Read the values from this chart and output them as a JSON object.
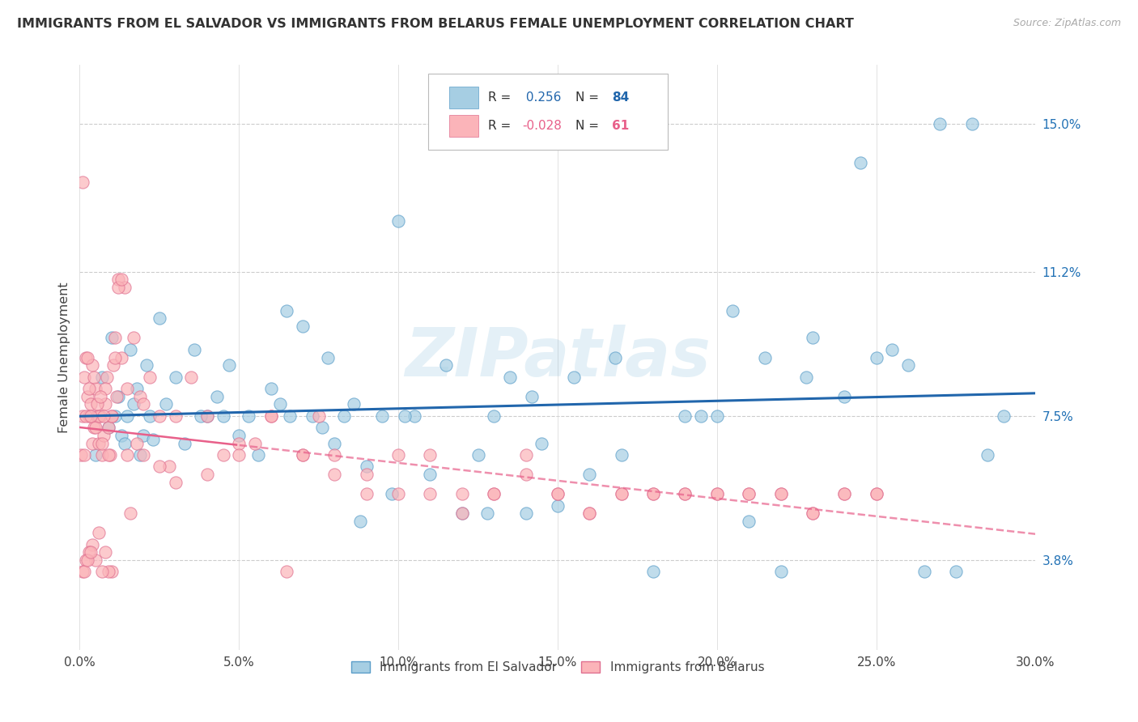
{
  "title": "IMMIGRANTS FROM EL SALVADOR VS IMMIGRANTS FROM BELARUS FEMALE UNEMPLOYMENT CORRELATION CHART",
  "source": "Source: ZipAtlas.com",
  "ylabel": "Female Unemployment",
  "xlim": [
    0.0,
    30.0
  ],
  "ylim": [
    1.5,
    16.5
  ],
  "xticks": [
    0.0,
    5.0,
    10.0,
    15.0,
    20.0,
    25.0,
    30.0
  ],
  "xtick_labels": [
    "0.0%",
    "5.0%",
    "10.0%",
    "15.0%",
    "20.0%",
    "25.0%",
    "30.0%"
  ],
  "yticks": [
    3.8,
    7.5,
    11.2,
    15.0
  ],
  "ytick_labels": [
    "3.8%",
    "7.5%",
    "11.2%",
    "15.0%"
  ],
  "r_el_salvador": "0.256",
  "n_el_salvador": "84",
  "r_belarus": "-0.028",
  "n_belarus": "61",
  "color_el_salvador": "#a6cee3",
  "color_el_salvador_edge": "#5b9ec9",
  "color_el_salvador_trend": "#2166ac",
  "color_belarus": "#fbb4b9",
  "color_belarus_edge": "#e07090",
  "color_belarus_trend": "#e8608a",
  "watermark_text": "ZIPatlas",
  "legend_bottom_labels": [
    "Immigrants from El Salvador",
    "Immigrants from Belarus"
  ],
  "el_salvador_x": [
    0.5,
    0.7,
    0.9,
    1.0,
    1.1,
    1.2,
    1.3,
    1.4,
    1.5,
    1.6,
    1.7,
    1.8,
    1.9,
    2.0,
    2.1,
    2.2,
    2.3,
    2.5,
    2.7,
    3.0,
    3.3,
    3.6,
    4.0,
    4.3,
    4.7,
    5.0,
    5.3,
    5.6,
    6.0,
    6.3,
    6.6,
    7.0,
    7.3,
    7.6,
    8.0,
    8.3,
    8.6,
    9.0,
    9.5,
    10.0,
    10.5,
    11.0,
    11.5,
    12.0,
    12.5,
    13.0,
    13.5,
    14.0,
    14.5,
    15.0,
    15.5,
    16.0,
    17.0,
    18.0,
    19.0,
    20.0,
    20.5,
    21.0,
    22.0,
    23.0,
    24.0,
    24.5,
    25.0,
    26.0,
    27.0,
    28.0,
    29.0,
    6.5,
    7.8,
    3.8,
    9.8,
    4.5,
    8.8,
    10.2,
    14.2,
    21.5,
    22.8,
    25.5,
    26.5,
    27.5,
    28.5,
    12.8,
    16.8,
    19.5
  ],
  "el_salvador_y": [
    6.5,
    8.5,
    7.2,
    9.5,
    7.5,
    8.0,
    7.0,
    6.8,
    7.5,
    9.2,
    7.8,
    8.2,
    6.5,
    7.0,
    8.8,
    7.5,
    6.9,
    10.0,
    7.8,
    8.5,
    6.8,
    9.2,
    7.5,
    8.0,
    8.8,
    7.0,
    7.5,
    6.5,
    8.2,
    7.8,
    7.5,
    9.8,
    7.5,
    7.2,
    6.8,
    7.5,
    7.8,
    6.2,
    7.5,
    12.5,
    7.5,
    6.0,
    8.8,
    5.0,
    6.5,
    7.5,
    8.5,
    5.0,
    6.8,
    5.2,
    8.5,
    6.0,
    6.5,
    3.5,
    7.5,
    7.5,
    10.2,
    4.8,
    3.5,
    9.5,
    8.0,
    14.0,
    9.0,
    8.8,
    15.0,
    15.0,
    7.5,
    10.2,
    9.0,
    7.5,
    5.5,
    7.5,
    4.8,
    7.5,
    8.0,
    9.0,
    8.5,
    9.2,
    3.5,
    3.5,
    6.5,
    5.0,
    9.0,
    7.5
  ],
  "belarus_x": [
    0.05,
    0.1,
    0.15,
    0.2,
    0.25,
    0.3,
    0.35,
    0.4,
    0.45,
    0.5,
    0.55,
    0.6,
    0.65,
    0.7,
    0.75,
    0.8,
    0.85,
    0.9,
    0.95,
    1.0,
    1.05,
    1.1,
    1.15,
    1.2,
    1.3,
    1.4,
    1.5,
    1.7,
    1.9,
    2.0,
    2.2,
    2.5,
    2.8,
    3.0,
    3.5,
    4.0,
    4.5,
    5.0,
    5.5,
    6.0,
    6.5,
    7.0,
    7.5,
    8.0,
    9.0,
    10.0,
    11.0,
    12.0,
    13.0,
    14.0,
    15.0,
    16.0,
    17.0,
    18.0,
    19.0,
    20.0,
    21.0,
    22.0,
    23.0,
    24.0,
    25.0
  ],
  "belarus_y": [
    6.5,
    7.5,
    8.5,
    9.0,
    8.0,
    7.5,
    7.8,
    6.8,
    7.2,
    8.2,
    7.5,
    6.8,
    7.5,
    6.5,
    7.0,
    7.8,
    8.5,
    7.2,
    6.5,
    7.5,
    8.8,
    9.5,
    8.0,
    11.0,
    9.0,
    10.8,
    8.2,
    9.5,
    8.0,
    7.8,
    8.5,
    7.5,
    6.2,
    7.5,
    8.5,
    7.5,
    6.5,
    6.8,
    6.8,
    7.5,
    3.5,
    6.5,
    7.5,
    6.5,
    6.0,
    5.5,
    5.5,
    5.0,
    5.5,
    6.5,
    5.5,
    5.0,
    5.5,
    5.5,
    5.5,
    5.5,
    5.5,
    5.5,
    5.0,
    5.5,
    5.5
  ],
  "extra_belarus_x": [
    0.1,
    0.15,
    0.2,
    0.3,
    0.4,
    0.5,
    0.6,
    0.7,
    0.8,
    0.9,
    1.0,
    1.1,
    1.2,
    1.3,
    1.5,
    0.25,
    0.35,
    0.45,
    0.55,
    0.65,
    0.75,
    1.6,
    1.8,
    2.0,
    2.5,
    3.0,
    4.0,
    5.0,
    6.0,
    7.0,
    8.0,
    9.0,
    10.0,
    11.0,
    12.0,
    13.0,
    14.0,
    15.0,
    16.0,
    17.0,
    18.0,
    19.0,
    20.0,
    21.0,
    22.0,
    23.0,
    24.0,
    25.0,
    1.0,
    0.9,
    0.8,
    0.7,
    0.6,
    0.5,
    0.4,
    0.3,
    0.2,
    0.1,
    0.15,
    0.25,
    0.35
  ],
  "extra_belarus_y": [
    13.5,
    6.5,
    7.5,
    8.2,
    8.8,
    7.2,
    7.5,
    6.8,
    8.2,
    6.5,
    7.5,
    9.0,
    10.8,
    11.0,
    6.5,
    9.0,
    7.5,
    8.5,
    7.8,
    8.0,
    7.5,
    5.0,
    6.8,
    6.5,
    6.2,
    5.8,
    6.0,
    6.5,
    7.5,
    6.5,
    6.0,
    5.5,
    6.5,
    6.5,
    5.5,
    5.5,
    6.0,
    5.5,
    5.0,
    5.5,
    5.5,
    5.5,
    5.5,
    5.5,
    5.5,
    5.0,
    5.5,
    5.5,
    3.5,
    3.5,
    4.0,
    3.5,
    4.5,
    3.8,
    4.2,
    4.0,
    3.8,
    3.5,
    3.5,
    3.8,
    4.0
  ]
}
